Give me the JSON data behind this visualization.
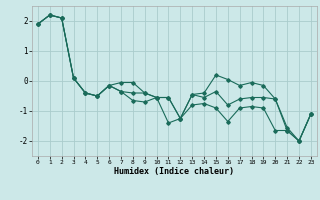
{
  "title": "",
  "xlabel": "Humidex (Indice chaleur)",
  "ylabel": "",
  "bg_color": "#cce8e8",
  "grid_color": "#aacccc",
  "line_color": "#1a6b5a",
  "x": [
    0,
    1,
    2,
    3,
    4,
    5,
    6,
    7,
    8,
    9,
    10,
    11,
    12,
    13,
    14,
    15,
    16,
    17,
    18,
    19,
    20,
    21,
    22,
    23
  ],
  "y_main": [
    1.9,
    2.2,
    2.1,
    0.1,
    -0.4,
    -0.5,
    -0.15,
    -0.35,
    -0.4,
    -0.4,
    -0.55,
    -0.55,
    -1.25,
    -0.45,
    -0.55,
    -0.35,
    -0.8,
    -0.6,
    -0.55,
    -0.55,
    -0.6,
    -1.65,
    -2.0,
    -1.1
  ],
  "y_max": [
    1.9,
    2.2,
    2.1,
    0.1,
    -0.4,
    -0.5,
    -0.15,
    -0.05,
    -0.05,
    -0.4,
    -0.55,
    -0.55,
    -1.25,
    -0.45,
    -0.4,
    0.2,
    0.05,
    -0.15,
    -0.05,
    -0.15,
    -0.6,
    -1.55,
    -2.0,
    -1.1
  ],
  "y_min": [
    1.9,
    2.2,
    2.1,
    0.1,
    -0.4,
    -0.5,
    -0.15,
    -0.35,
    -0.65,
    -0.7,
    -0.55,
    -1.4,
    -1.25,
    -0.8,
    -0.75,
    -0.9,
    -1.35,
    -0.9,
    -0.85,
    -0.9,
    -1.65,
    -1.65,
    -2.0,
    -1.1
  ],
  "ylim": [
    -2.5,
    2.5
  ],
  "yticks": [
    -2,
    -1,
    0,
    1,
    2
  ],
  "xlim": [
    -0.5,
    23.5
  ],
  "xticks": [
    0,
    1,
    2,
    3,
    4,
    5,
    6,
    7,
    8,
    9,
    10,
    11,
    12,
    13,
    14,
    15,
    16,
    17,
    18,
    19,
    20,
    21,
    22,
    23
  ]
}
